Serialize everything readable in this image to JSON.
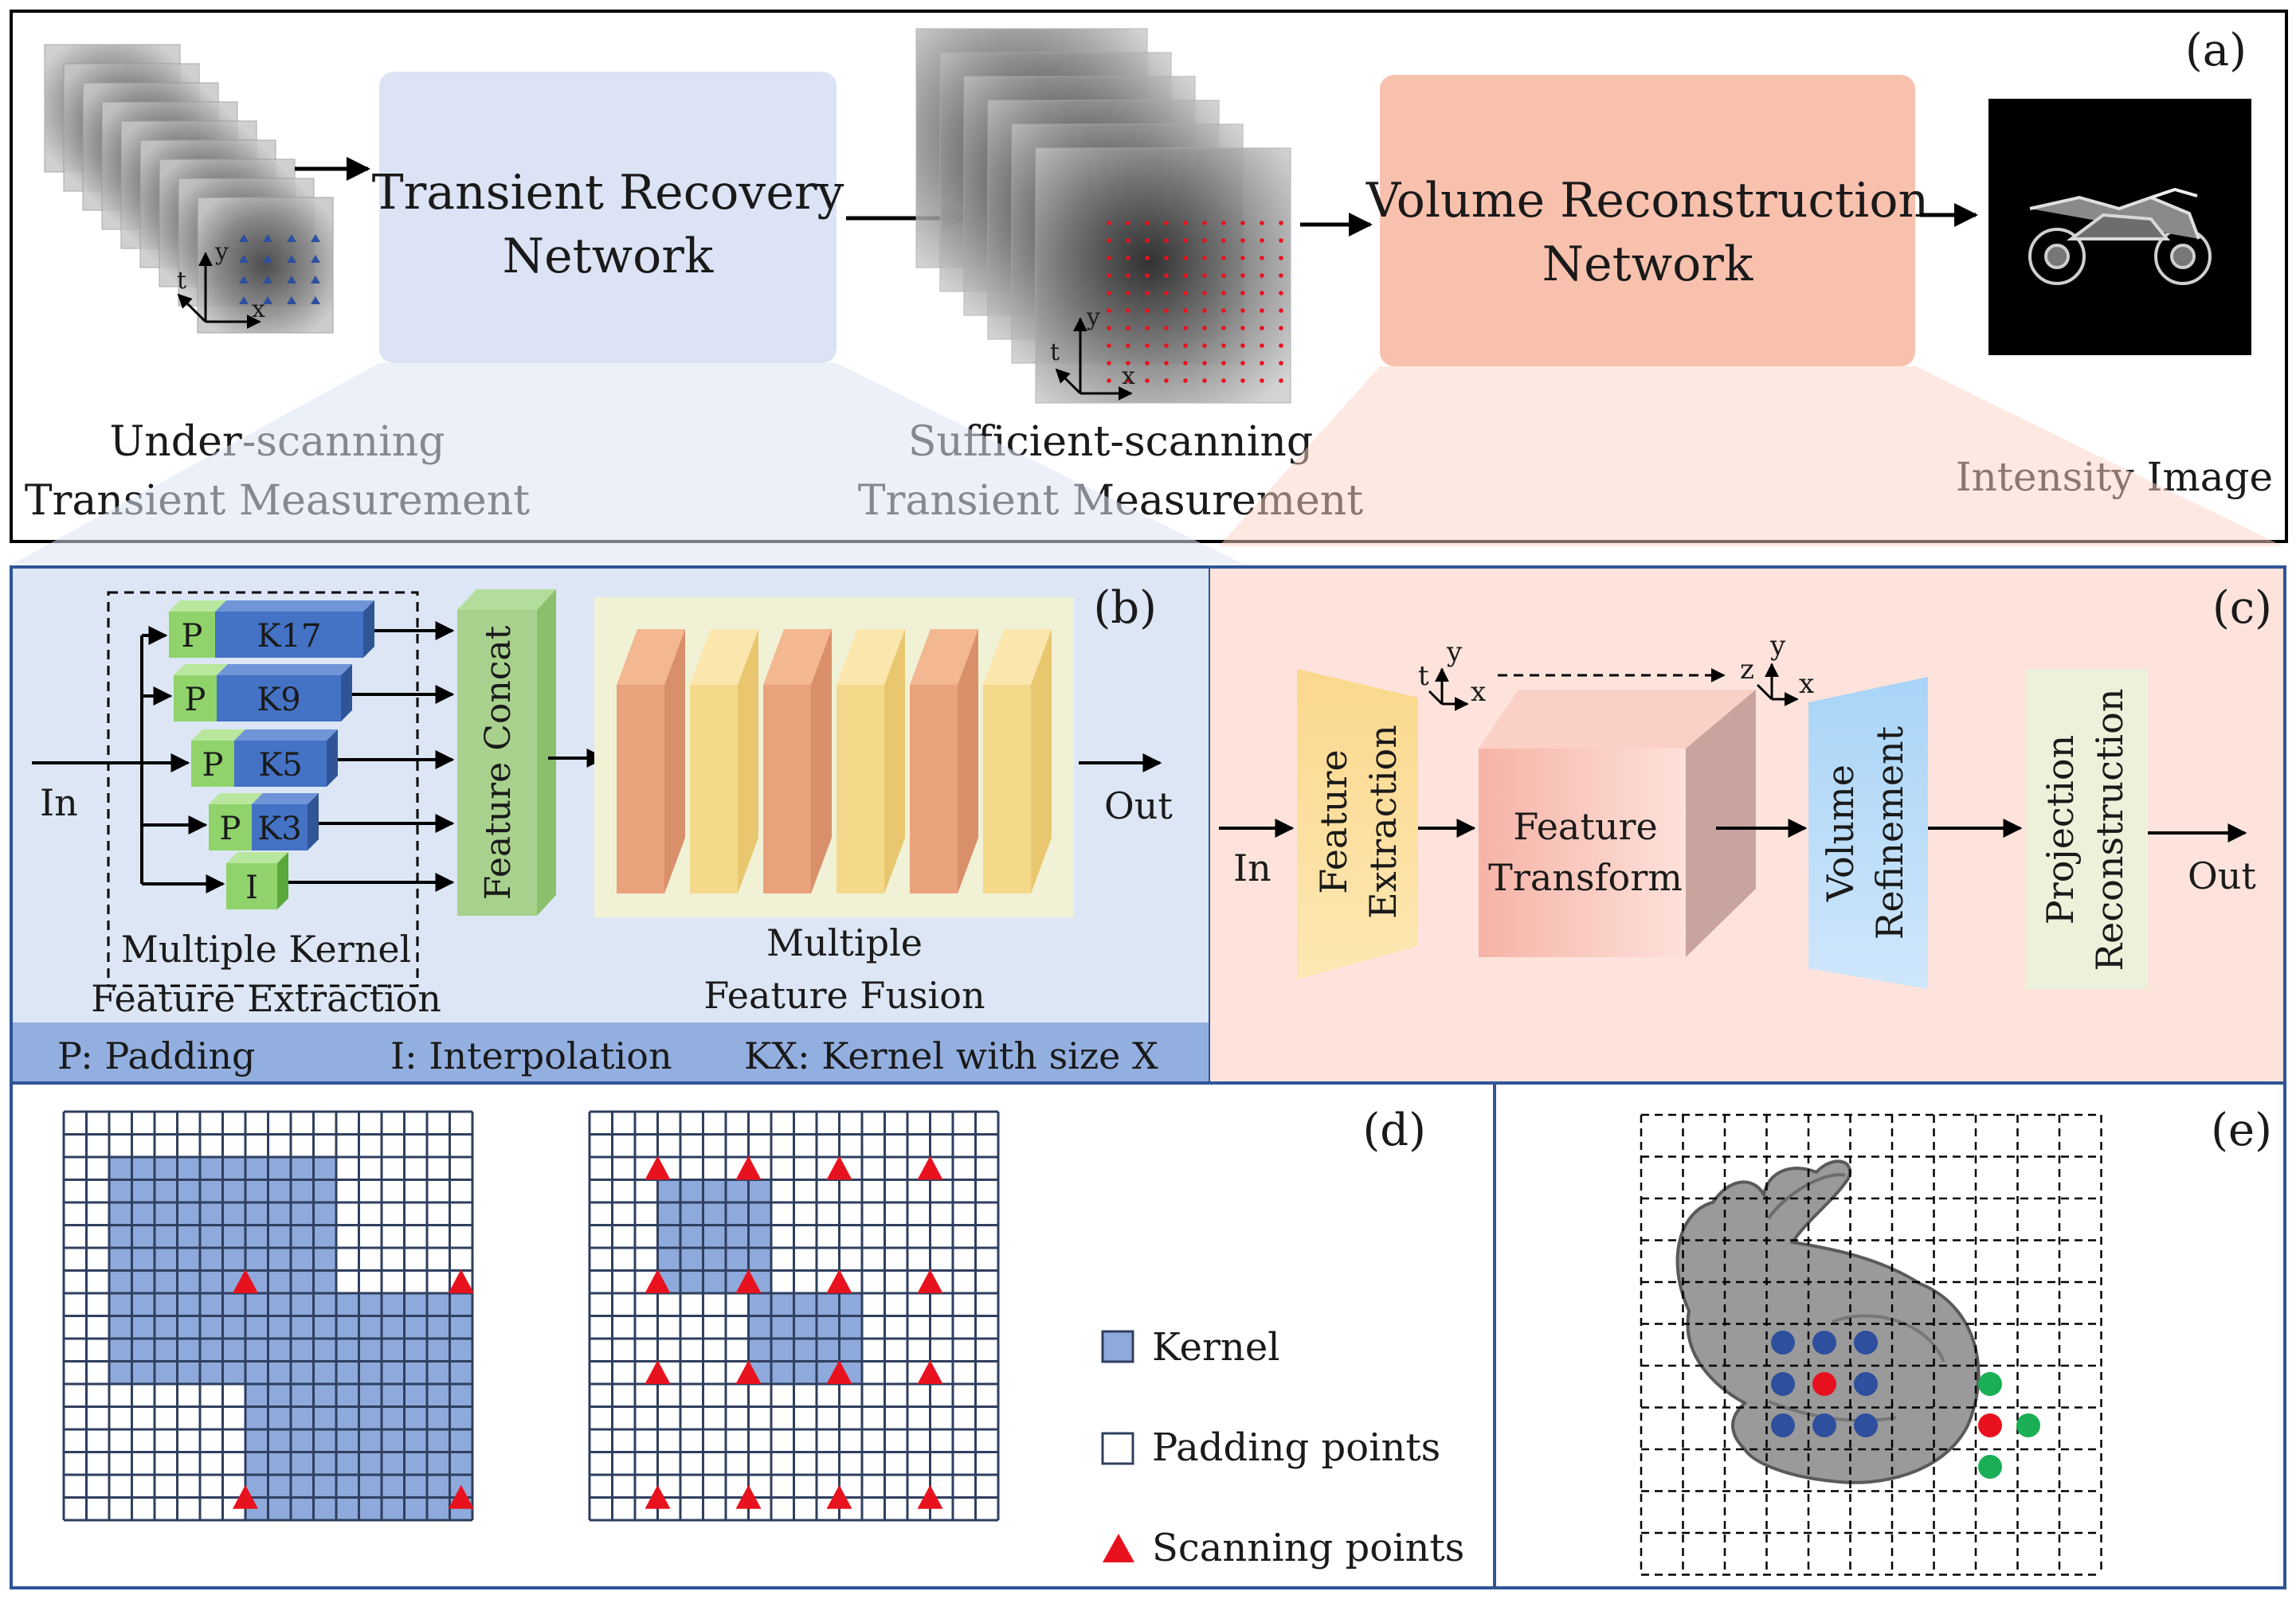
{
  "panel_a": {
    "tag": "(a)",
    "undersampled_label_1": "Under-scanning",
    "undersampled_label_2": "Transient Measurement",
    "sufficient_label_1": "Sufficient-scanning",
    "sufficient_label_2": "Transient Measurement",
    "trn_line1": "Transient Recovery",
    "trn_line2": "Network",
    "vrn_line1": "Volume Reconstruction",
    "vrn_line2": "Network",
    "intensity_label": "Intensity Image",
    "axis_t": "t",
    "axis_x": "x",
    "axis_y": "y"
  },
  "panel_b": {
    "tag": "(b)",
    "in_label": "In",
    "out_label": "Out",
    "pad": "P",
    "interp": "I",
    "k17": "K17",
    "k9": "K9",
    "k5": "K5",
    "k3": "K3",
    "concat": "Feature Concat",
    "mk_line1": "Multiple Kernel",
    "mk_line2": "Feature Extraction",
    "mf_line1": "Multiple",
    "mf_line2": "Feature Fusion",
    "legend_p": "P: Padding",
    "legend_i": "I: Interpolation",
    "legend_k": "KX: Kernel with size X"
  },
  "panel_c": {
    "tag": "(c)",
    "in_label": "In",
    "out_label": "Out",
    "fe_line1": "Feature",
    "fe_line2": "Extraction",
    "ft_line1": "Feature",
    "ft_line2": "Transform",
    "vr_line1": "Volume",
    "vr_line2": "Refinement",
    "pr_line1": "Projection",
    "pr_line2": "Reconstruction",
    "axis_t": "t",
    "axis_z": "z",
    "axis_x": "x",
    "axis_y": "y"
  },
  "panel_d": {
    "tag": "(d)",
    "legend_kernel": "Kernel",
    "legend_padding": "Padding points",
    "legend_scanning": "Scanning points"
  },
  "panel_e": {
    "tag": "(e)"
  },
  "colors": {
    "kernel_blue": "#8ea9db",
    "grid_line": "#2f3f5f",
    "scan_red": "#e8121e",
    "trn_fill": "#dbe3f4",
    "vrn_fill": "#f8c1ae",
    "panel_b_bg": "#dde6f4",
    "panel_c_bg": "#fde3dc",
    "legend_bar": "#93afe0",
    "pad_green": "#8fd36a",
    "dot_blue": "#2d4f9e",
    "dot_green": "#1aaf54"
  }
}
